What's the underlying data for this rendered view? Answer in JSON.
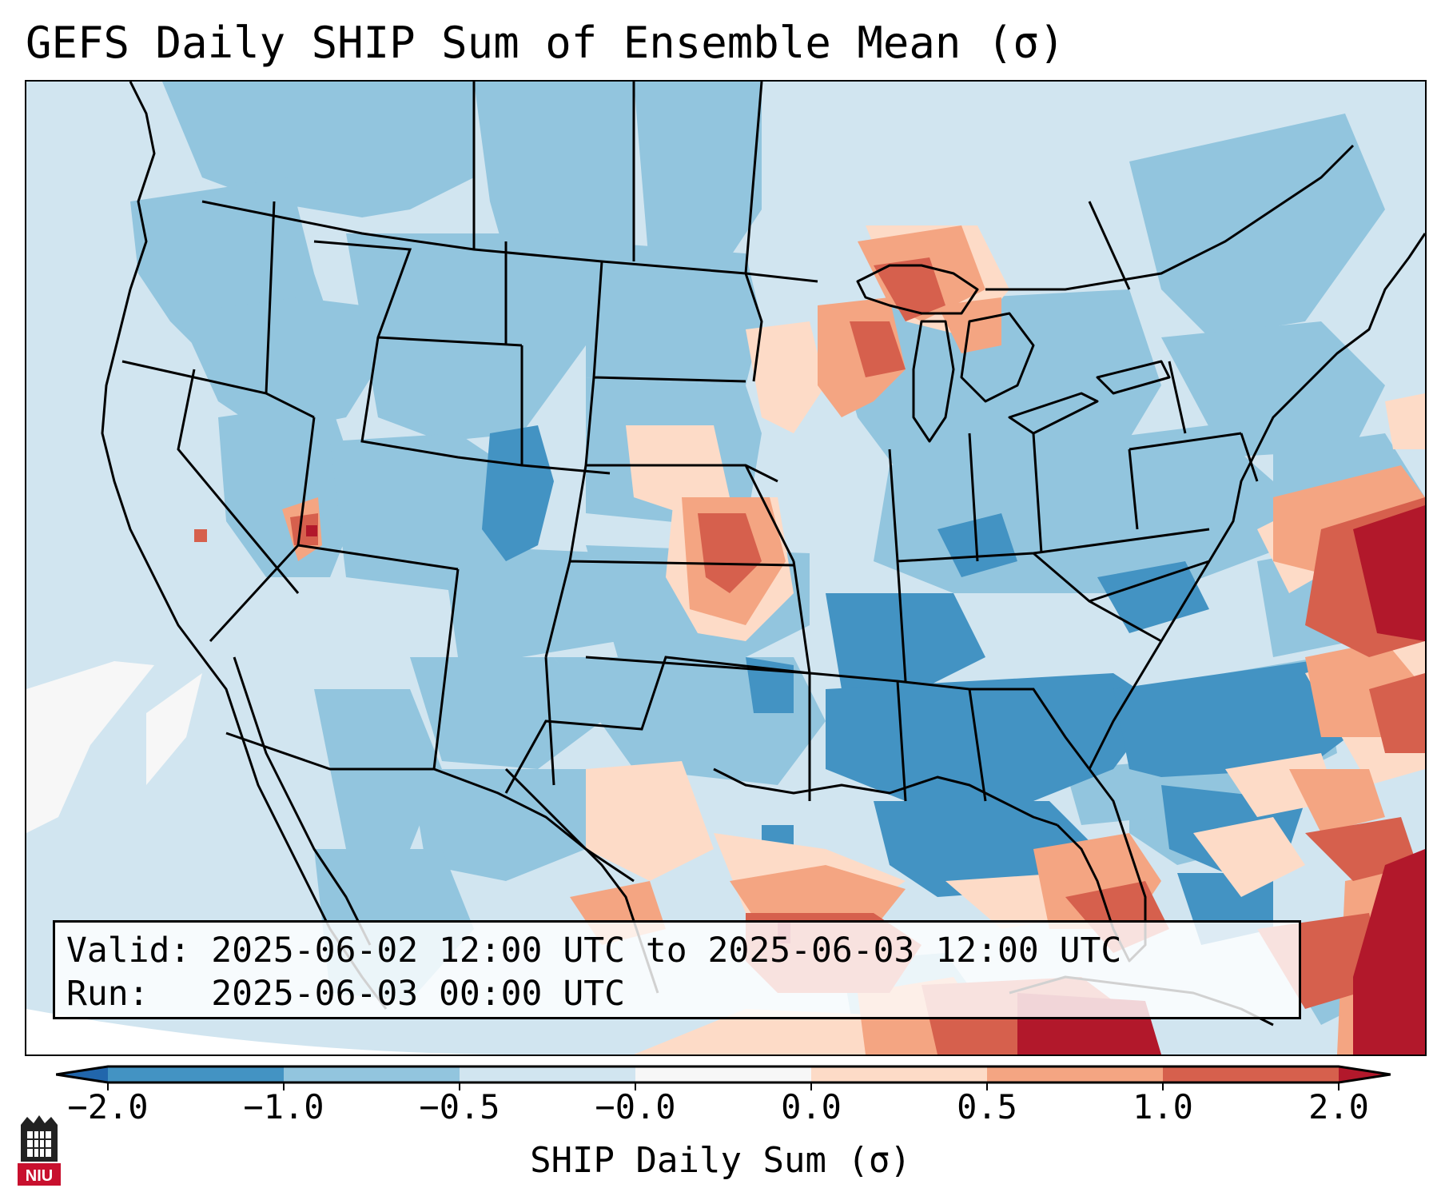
{
  "title": "GEFS Daily SHIP Sum of Ensemble Mean (σ)",
  "info": {
    "valid_label": "Valid:",
    "valid_text": "2025-06-02 12:00 UTC to 2025-06-03 12:00 UTC",
    "run_label": "Run:",
    "run_text": "2025-06-03 00:00 UTC"
  },
  "colorbar": {
    "label": "SHIP Daily Sum (σ)",
    "ticks": [
      "−2.0",
      "−1.0",
      "−0.5",
      "−0.0",
      "0.0",
      "0.5",
      "1.0",
      "2.0"
    ],
    "bins": [
      {
        "range": "< -2.0",
        "color": "#2166ac"
      },
      {
        "range": "-2.0 to -1.0",
        "color": "#4393c3"
      },
      {
        "range": "-1.0 to -0.5",
        "color": "#92c5de"
      },
      {
        "range": "-0.5 to -0.0",
        "color": "#d1e5f0"
      },
      {
        "range": "-0.0 to 0.0",
        "color": "#f7f7f7"
      },
      {
        "range": "0.0 to 0.5",
        "color": "#fddbc7"
      },
      {
        "range": "0.5 to 1.0",
        "color": "#f4a582"
      },
      {
        "range": "1.0 to 2.0",
        "color": "#d6604d"
      },
      {
        "range": "> 2.0",
        "color": "#b2182b"
      }
    ],
    "extend": "both"
  },
  "map": {
    "region": "Contiguous United States, southern Canada, northern Mexico, Gulf of Mexico, western Atlantic",
    "background_color": "#d1e5f0"
  },
  "logo": {
    "text": "NIU",
    "icon": "niu-logo"
  }
}
